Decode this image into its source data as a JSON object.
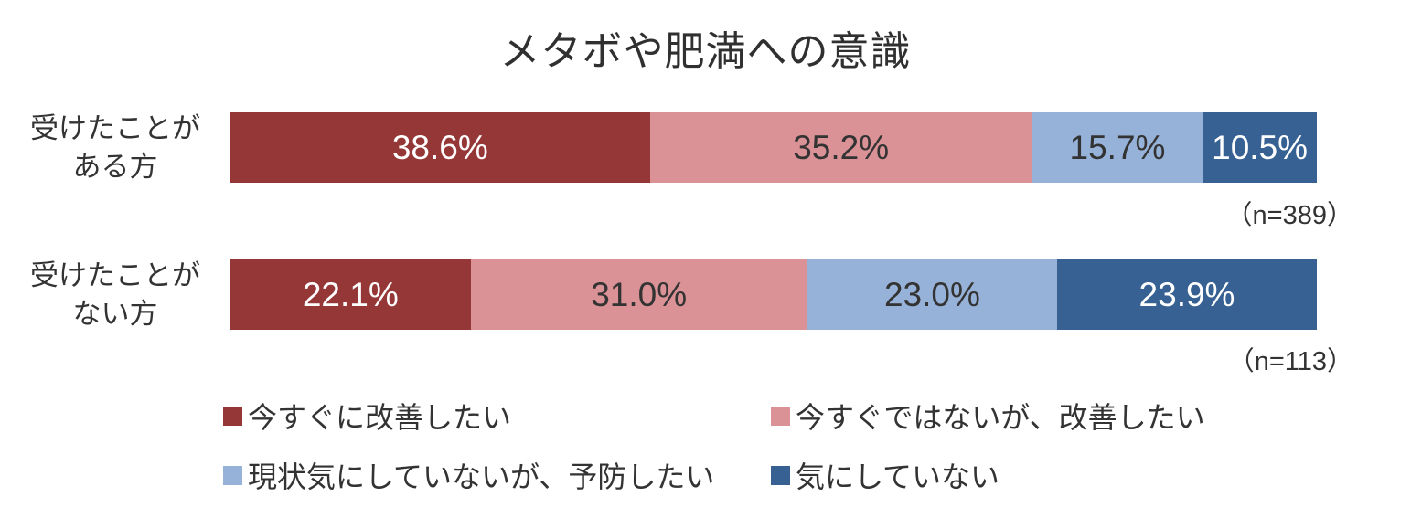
{
  "title": "メタボや肥満への意識",
  "text_color": "#333333",
  "chart_data": {
    "type": "bar",
    "variant": "horizontal-stacked",
    "title": "メタボや肥満への意識",
    "categories": [
      "受けたことがある方",
      "受けたことがない方"
    ],
    "series": [
      {
        "name": "今すぐに改善したい",
        "color": "#963737",
        "values": [
          38.6,
          22.1
        ]
      },
      {
        "name": "今すぐではないが、改善したい",
        "color": "#da9296",
        "values": [
          35.2,
          31.0
        ]
      },
      {
        "name": "現状気にしていないが、予防したい",
        "color": "#97b2d8",
        "values": [
          15.7,
          23.0
        ]
      },
      {
        "name": "気にしていない",
        "color": "#366192",
        "values": [
          10.5,
          23.9
        ]
      }
    ],
    "value_labels": [
      [
        "38.6%",
        "35.2%",
        "15.7%",
        "10.5%"
      ],
      [
        "22.1%",
        "31.0%",
        "23.0%",
        "23.9%"
      ]
    ],
    "sample_sizes": [
      389,
      113
    ],
    "xlim": [
      0,
      100
    ],
    "grid": false,
    "legend_position": "bottom"
  },
  "rows": [
    {
      "label_lines": [
        "受けたことが",
        "ある方"
      ],
      "n_label": "（n=389）"
    },
    {
      "label_lines": [
        "受けたことが",
        "ない方"
      ],
      "n_label": "（n=113）"
    }
  ]
}
